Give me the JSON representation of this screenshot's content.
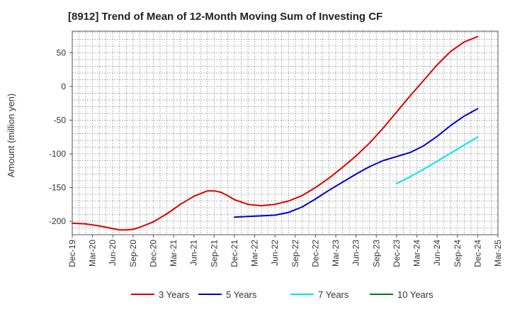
{
  "chart_data": {
    "type": "line",
    "title": "[8912]  Trend of Mean of 12-Month Moving Sum of Investing CF",
    "xlabel": "",
    "ylabel": "Amount (million yen)",
    "ylim": [
      -220,
      82
    ],
    "yticks": [
      50,
      0,
      -50,
      -100,
      -150,
      -200
    ],
    "grid": true,
    "legend_position": "bottom",
    "x_tick_labels": [
      "Dec-19",
      "Mar-20",
      "Jun-20",
      "Sep-20",
      "Dec-20",
      "Mar-21",
      "Jun-21",
      "Sep-21",
      "Dec-21",
      "Mar-22",
      "Jun-22",
      "Sep-22",
      "Dec-22",
      "Mar-23",
      "Jun-23",
      "Sep-23",
      "Dec-23",
      "Mar-24",
      "Jun-24",
      "Sep-24",
      "Dec-24",
      "Mar-25"
    ],
    "x_positions": [
      0,
      3,
      6,
      9,
      12,
      15,
      18,
      21,
      24,
      27,
      30,
      33,
      36,
      39,
      42,
      45,
      48,
      51,
      54,
      57,
      60,
      63
    ],
    "series": [
      {
        "name": "3 Years",
        "color": "#dd0000",
        "x": [
          0,
          2,
          4,
          6,
          7,
          8,
          9,
          10,
          12,
          14,
          16,
          18,
          20,
          21,
          22,
          23,
          24,
          26,
          28,
          30,
          32,
          34,
          36,
          38,
          40,
          42,
          44,
          46,
          48,
          50,
          52,
          54,
          56,
          58,
          60
        ],
        "values": [
          -203,
          -204,
          -207,
          -211,
          -213,
          -213,
          -212,
          -209,
          -201,
          -189,
          -175,
          -163,
          -155,
          -155,
          -157,
          -162,
          -168,
          -175,
          -177,
          -175,
          -170,
          -162,
          -150,
          -136,
          -120,
          -103,
          -84,
          -62,
          -38,
          -14,
          9,
          32,
          52,
          66,
          74
        ]
      },
      {
        "name": "5 Years",
        "color": "#0000cc",
        "x": [
          24,
          26,
          28,
          30,
          32,
          34,
          36,
          38,
          40,
          42,
          44,
          46,
          48,
          50,
          52,
          54,
          56,
          58,
          60
        ],
        "values": [
          -194,
          -193,
          -192,
          -191,
          -187,
          -179,
          -167,
          -154,
          -142,
          -130,
          -119,
          -110,
          -104,
          -98,
          -88,
          -74,
          -58,
          -44,
          -33
        ]
      },
      {
        "name": "7 Years",
        "color": "#00e5ee",
        "x": [
          48,
          50,
          52,
          54,
          56,
          58,
          60
        ],
        "values": [
          -144,
          -134,
          -123,
          -111,
          -99,
          -87,
          -75
        ]
      },
      {
        "name": "10 Years",
        "color": "#008000",
        "x": [],
        "values": []
      }
    ]
  }
}
